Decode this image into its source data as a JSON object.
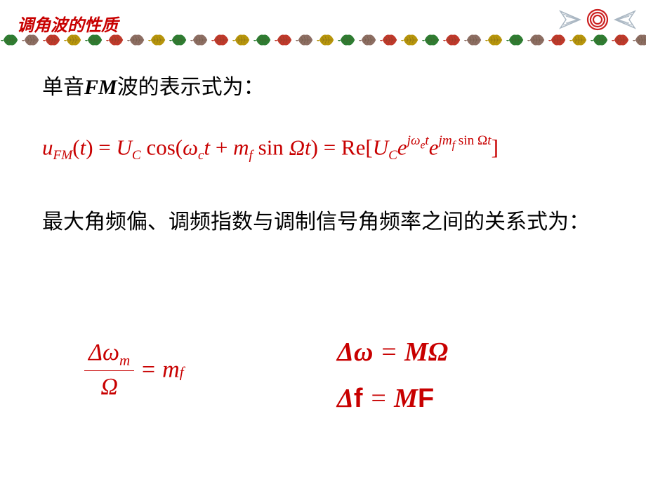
{
  "title": {
    "text": "调角波的性质",
    "color": "#c80000",
    "fontsize": 24
  },
  "divider": {
    "leaf_colors": [
      "#2e7d32",
      "#8d6e63",
      "#c0392b",
      "#b7950b",
      "#2e7d32",
      "#c0392b",
      "#8d6e63",
      "#b7950b"
    ],
    "count": 32
  },
  "corner": {
    "spiral_color": "#cc2222",
    "wing_color": "#a9b6c2"
  },
  "line1": {
    "prefix": "单音",
    "fm": "FM",
    "suffix": "波的表示式为：",
    "fontsize": 30,
    "color": "#000000"
  },
  "formula1": {
    "color": "#c80000",
    "fontsize": 31,
    "u": "u",
    "FM": "FM",
    "t_paren_open": "(",
    "t": "t",
    "t_paren_close": ")",
    "eq": " = ",
    "U": "U",
    "C": "C",
    "cos": " cos(",
    "omega": "ω",
    "c": "c",
    "plus": " + ",
    "m": "m",
    "f": "f",
    "sin": " sin",
    "Omega": "Ω",
    "close": ")",
    "eq2": " = ",
    "Re": "Re[",
    "e": "e",
    "j": "j",
    "omega_e": "ω",
    "e_sub": "e",
    "jm": "jm",
    "sinOmega": " sin Ω",
    "bracket_close": "]"
  },
  "line2": {
    "text": "最大角频偏、调频指数与调制信号角频率之间的关系式为：",
    "fontsize": 30,
    "color": "#000000"
  },
  "formula2": {
    "color": "#c80000",
    "fontsize": 34,
    "Delta": "Δ",
    "omega": "ω",
    "m_sub": "m",
    "Omega": "Ω",
    "eq": " = ",
    "m": "m",
    "f": "f"
  },
  "formula3": {
    "color": "#c80000",
    "fontsize": 38,
    "line_a": {
      "Delta": "Δ",
      "omega": "ω",
      "eq": " = ",
      "M": "M",
      "Omega": "Ω"
    },
    "line_b": {
      "Delta": "Δ",
      "f": "f",
      "eq": " = ",
      "M": "M",
      "F": "F"
    }
  }
}
